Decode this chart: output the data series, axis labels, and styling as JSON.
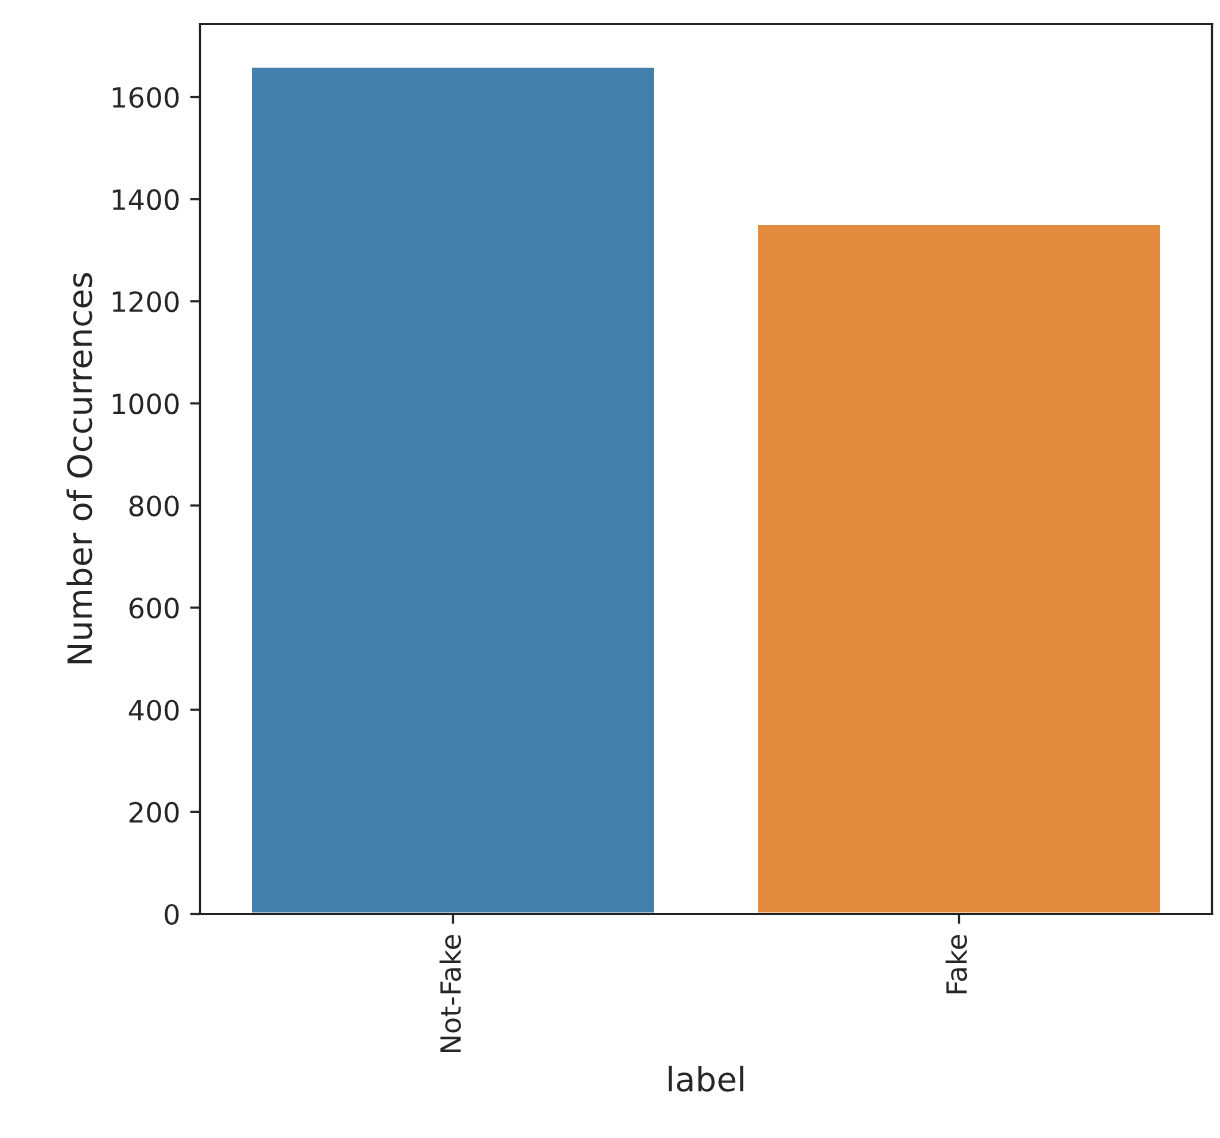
{
  "chart_data": {
    "type": "bar",
    "xlabel": "label",
    "ylabel": "Number of Occurrences",
    "categories": [
      "Not-Fake",
      "Fake"
    ],
    "values": [
      1660,
      1352
    ],
    "colors": [
      "#4480ab",
      "#e38c40"
    ],
    "ylim": [
      0,
      1743
    ],
    "yticks": [
      0,
      200,
      400,
      600,
      800,
      1000,
      1200,
      1400,
      1600
    ],
    "grid": false,
    "legend": false
  }
}
